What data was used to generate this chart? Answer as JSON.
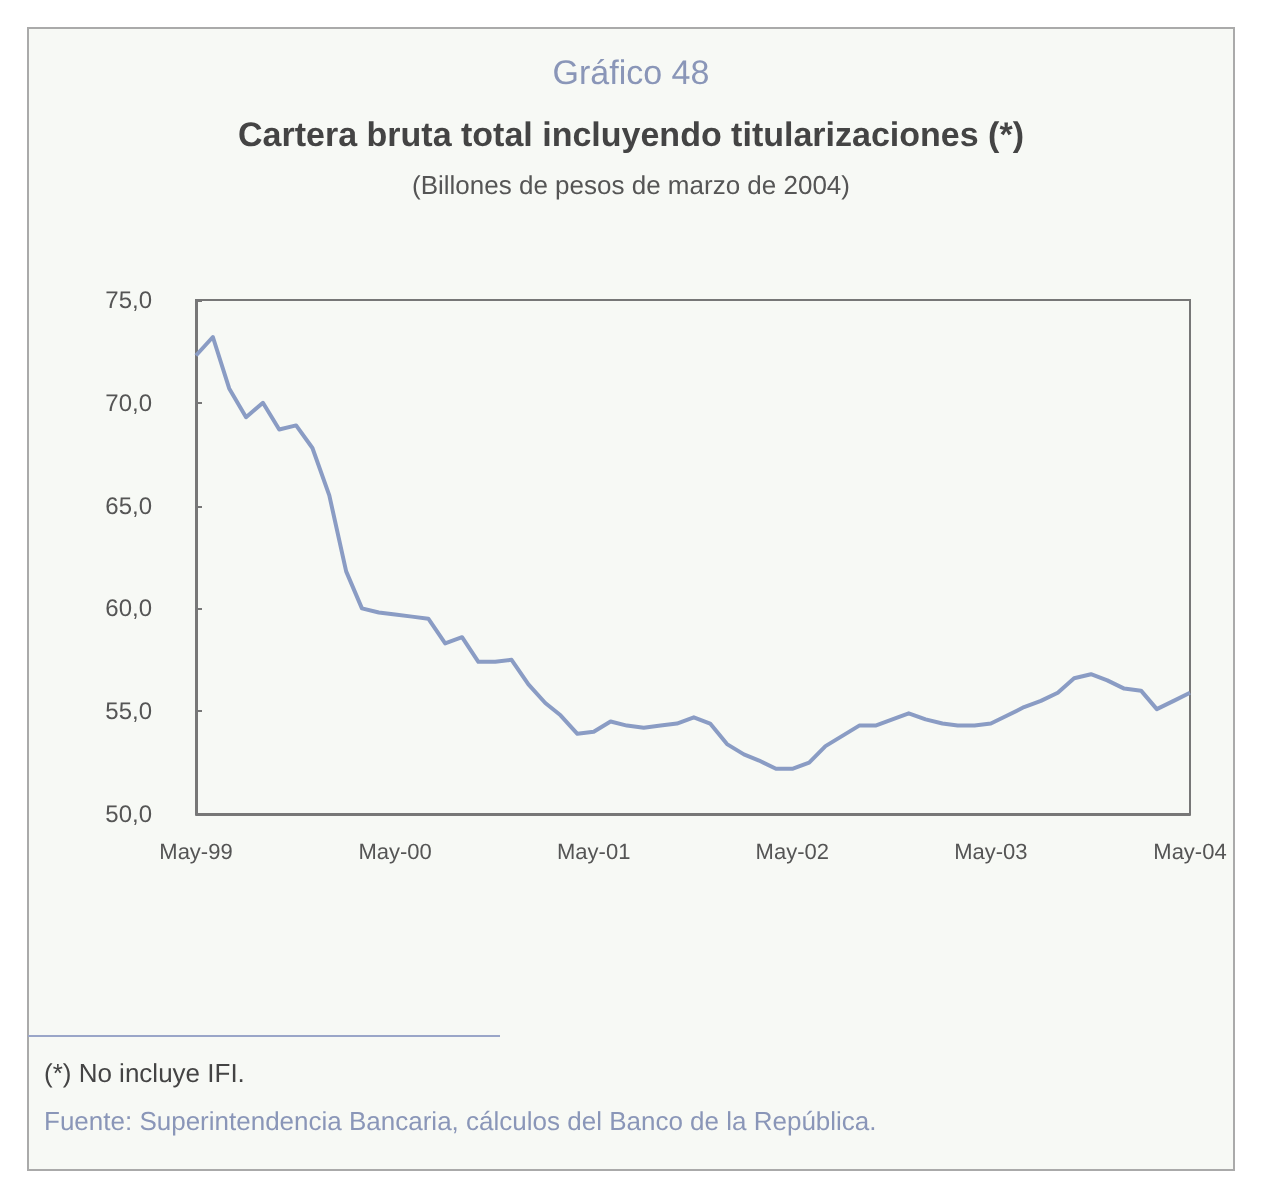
{
  "chart_data": {
    "type": "line",
    "title": "Cartera bruta total incluyendo titularizaciones (*)",
    "subtitle": "(Billones de pesos de marzo de 2004)",
    "annotations": [
      "Gráfico 48",
      "(*) No incluye IFI.",
      "Fuente: Superintendencia Bancaria, cálculos del Banco de la República."
    ],
    "x": [
      "1999-05",
      "1999-06",
      "1999-07",
      "1999-08",
      "1999-09",
      "1999-10",
      "1999-11",
      "1999-12",
      "2000-01",
      "2000-02",
      "2000-03",
      "2000-04",
      "2000-05",
      "2000-06",
      "2000-07",
      "2000-08",
      "2000-09",
      "2000-10",
      "2000-11",
      "2000-12",
      "2001-01",
      "2001-02",
      "2001-03",
      "2001-04",
      "2001-05",
      "2001-06",
      "2001-07",
      "2001-08",
      "2001-09",
      "2001-10",
      "2001-11",
      "2001-12",
      "2002-01",
      "2002-02",
      "2002-03",
      "2002-04",
      "2002-05",
      "2002-06",
      "2002-07",
      "2002-08",
      "2002-09",
      "2002-10",
      "2002-11",
      "2002-12",
      "2003-01",
      "2003-02",
      "2003-03",
      "2003-04",
      "2003-05",
      "2003-06",
      "2003-07",
      "2003-08",
      "2003-09",
      "2003-10",
      "2003-11",
      "2003-12",
      "2004-01",
      "2004-02",
      "2004-03",
      "2004-04",
      "2004-05"
    ],
    "series": [
      {
        "color": "#8a9cc4",
        "values": [
          72.3,
          73.2,
          70.7,
          69.3,
          70.0,
          68.7,
          68.9,
          67.8,
          65.5,
          61.8,
          60.0,
          59.8,
          59.7,
          59.6,
          59.5,
          58.3,
          58.6,
          57.4,
          57.4,
          57.5,
          56.3,
          55.4,
          54.8,
          53.9,
          54.0,
          54.5,
          54.3,
          54.2,
          54.3,
          54.4,
          54.7,
          54.4,
          53.4,
          52.9,
          52.6,
          52.2,
          52.2,
          52.5,
          53.3,
          53.8,
          54.3,
          54.3,
          54.6,
          54.9,
          54.6,
          54.4,
          54.3,
          54.3,
          54.4,
          54.8,
          55.2,
          55.5,
          55.9,
          56.6,
          56.8,
          56.5,
          56.1,
          56.0,
          55.1,
          55.5,
          55.9
        ]
      }
    ],
    "xlim": [
      "1999-05",
      "2004-05"
    ],
    "xticks": [
      {
        "value": "1999-05",
        "label": "May-99"
      },
      {
        "value": "2000-05",
        "label": "May-00"
      },
      {
        "value": "2001-05",
        "label": "May-01"
      },
      {
        "value": "2002-05",
        "label": "May-02"
      },
      {
        "value": "2003-05",
        "label": "May-03"
      },
      {
        "value": "2004-05",
        "label": "May-04"
      }
    ],
    "ylim": [
      50,
      75
    ],
    "yticks": [
      {
        "value": 50,
        "label": "50,0"
      },
      {
        "value": 55,
        "label": "55,0"
      },
      {
        "value": 60,
        "label": "60,0"
      },
      {
        "value": 65,
        "label": "65,0"
      },
      {
        "value": 70,
        "label": "70,0"
      },
      {
        "value": 75,
        "label": "75,0"
      }
    ],
    "grid": false,
    "marker": "none",
    "line_style": "solid"
  }
}
